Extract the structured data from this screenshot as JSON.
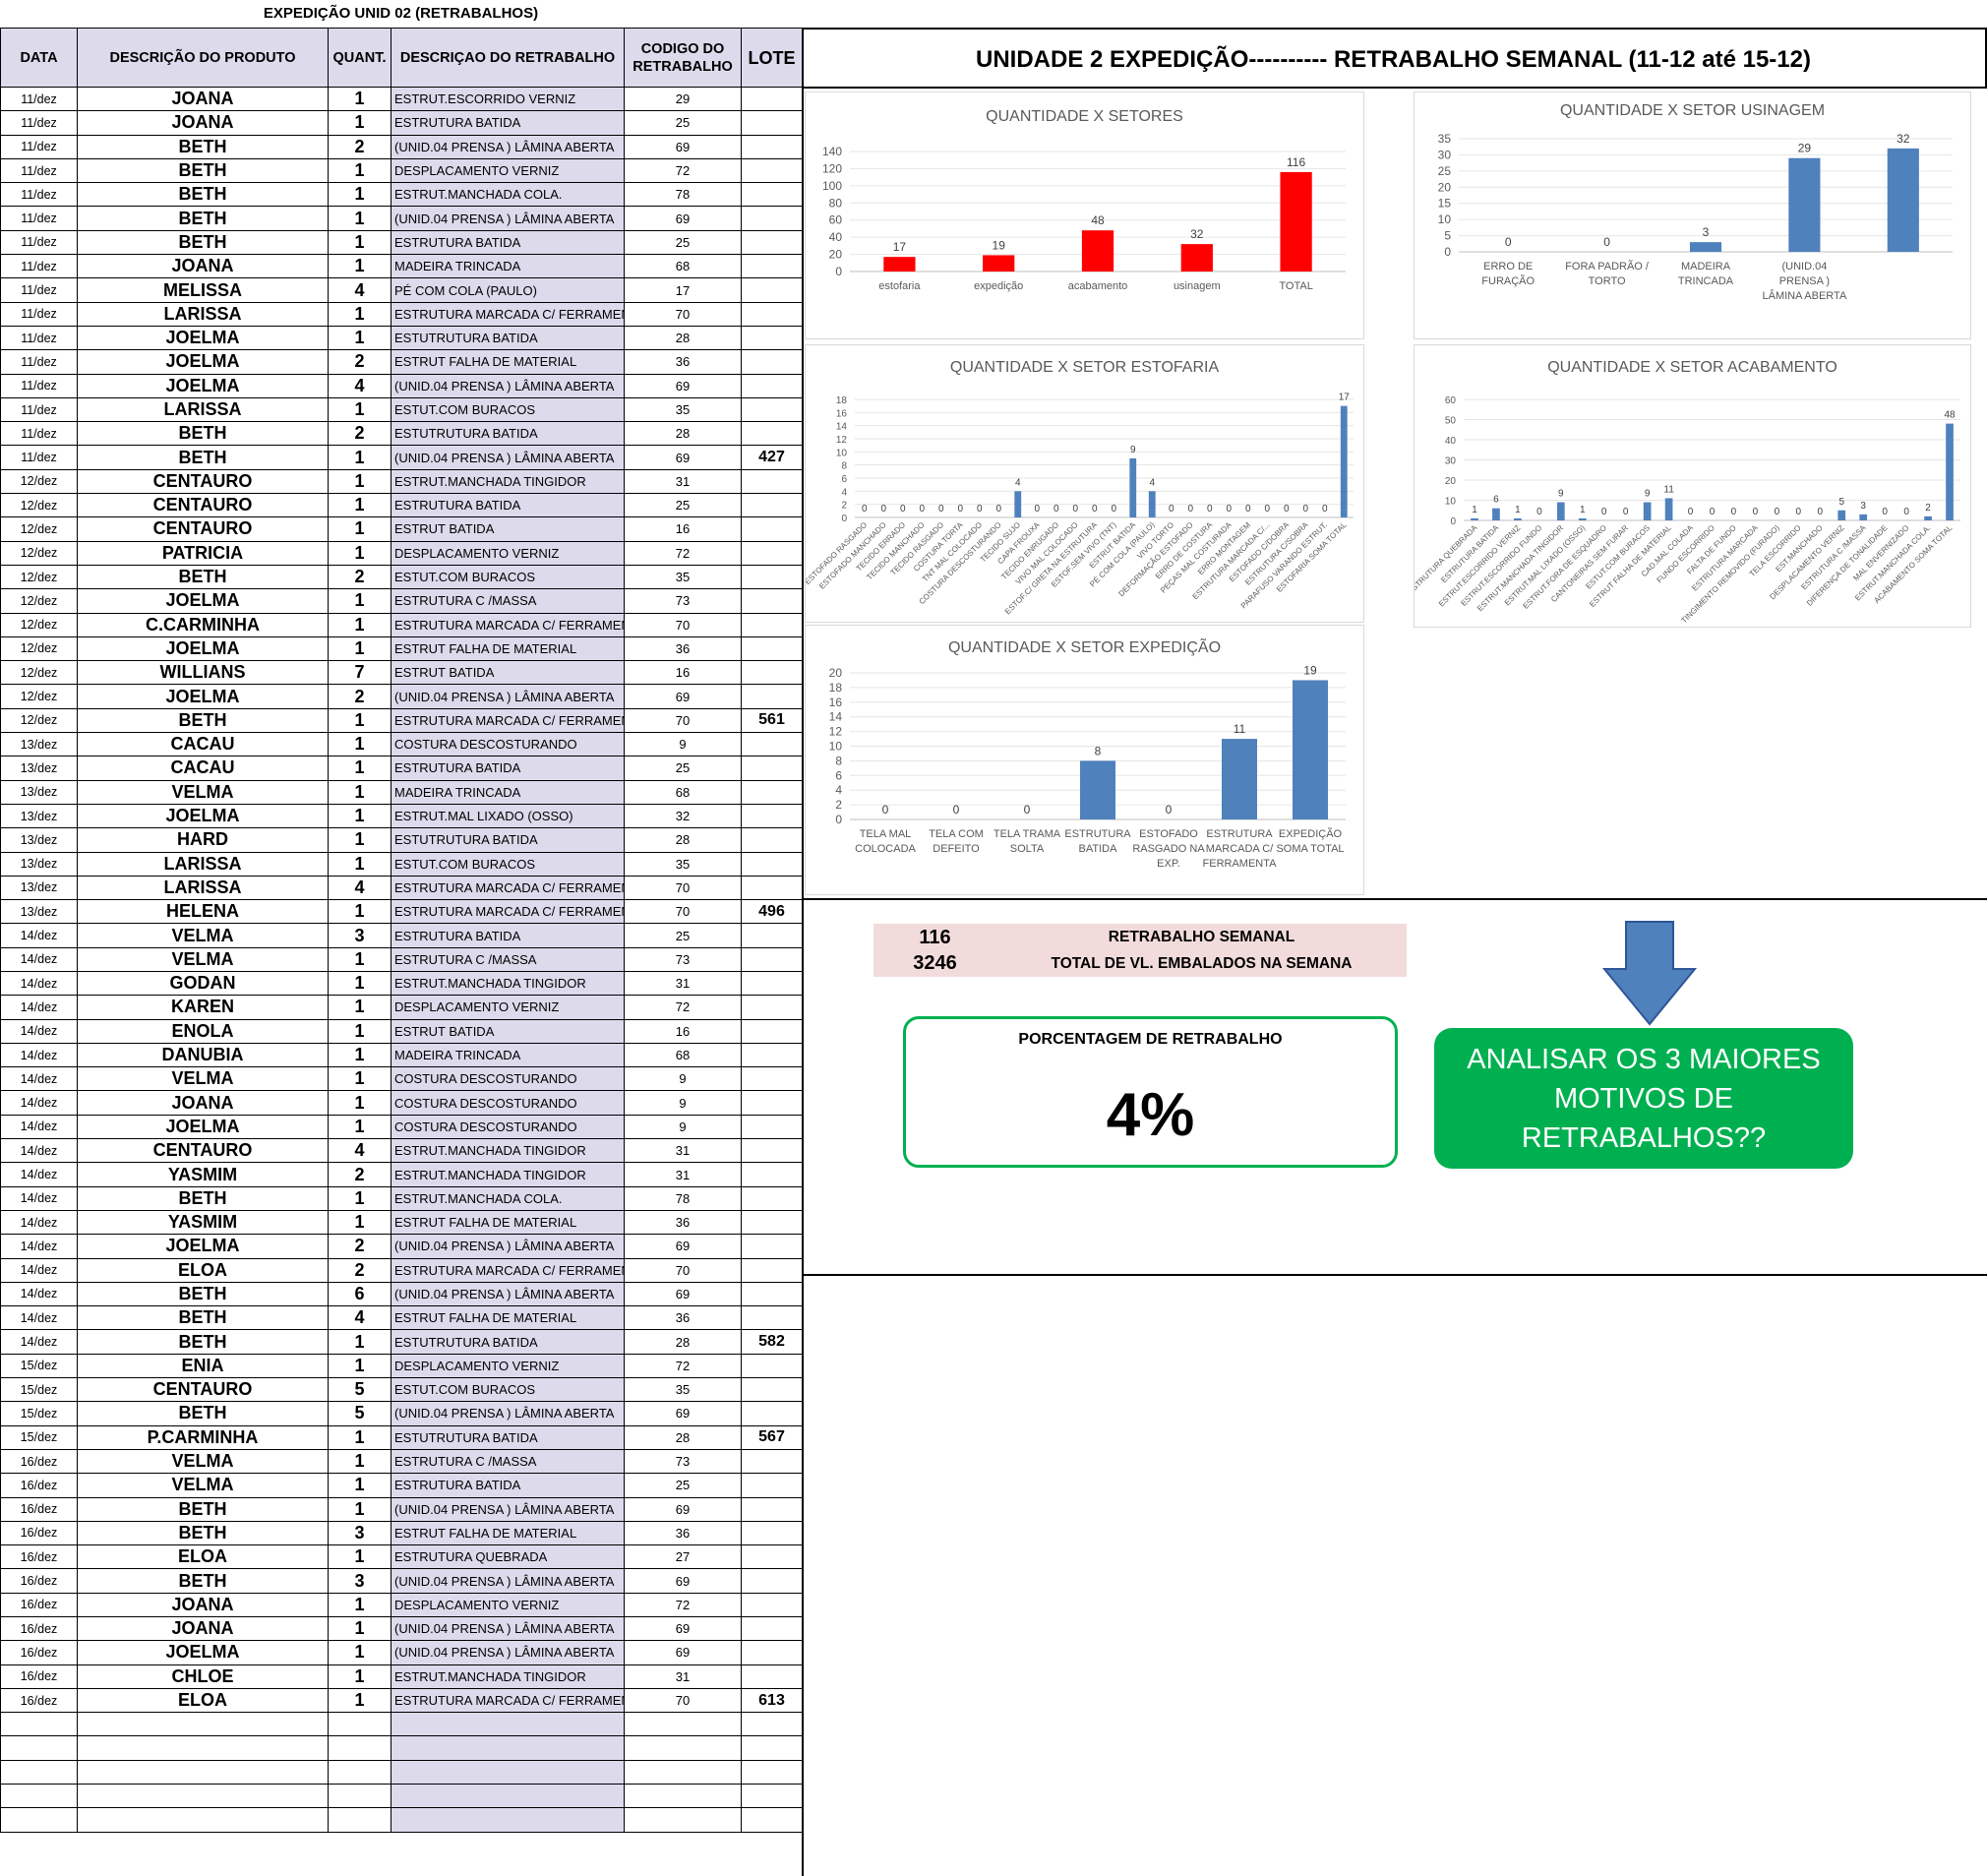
{
  "sheet_title": "EXPEDIÇÃO UNID 02 (RETRABALHOS)",
  "header": "UNIDADE 2 EXPEDIÇÃO----------   RETRABALHO SEMANAL (11-12 até 15-12)",
  "columns": [
    "DATA",
    "DESCRIÇÃO DO PRODUTO",
    "QUANT.",
    "DESCRIÇAO DO RETRABALHO",
    "CODIGO DO RETRABALHO",
    "LOTE"
  ],
  "rows": [
    [
      "11/dez",
      "JOANA",
      "1",
      "ESTRUT.ESCORRIDO VERNIZ",
      "29",
      ""
    ],
    [
      "11/dez",
      "JOANA",
      "1",
      "ESTRUTURA BATIDA",
      "25",
      ""
    ],
    [
      "11/dez",
      "BETH",
      "2",
      "(UNID.04 PRENSA ) LÂMINA ABERTA",
      "69",
      ""
    ],
    [
      "11/dez",
      "BETH",
      "1",
      "DESPLACAMENTO VERNIZ",
      "72",
      ""
    ],
    [
      "11/dez",
      "BETH",
      "1",
      "ESTRUT.MANCHADA COLA.",
      "78",
      ""
    ],
    [
      "11/dez",
      "BETH",
      "1",
      "(UNID.04 PRENSA ) LÂMINA ABERTA",
      "69",
      ""
    ],
    [
      "11/dez",
      "BETH",
      "1",
      "ESTRUTURA BATIDA",
      "25",
      ""
    ],
    [
      "11/dez",
      "JOANA",
      "1",
      "MADEIRA TRINCADA",
      "68",
      ""
    ],
    [
      "11/dez",
      "MELISSA",
      "4",
      "PÉ COM COLA (PAULO)",
      "17",
      ""
    ],
    [
      "11/dez",
      "LARISSA",
      "1",
      "ESTRUTURA MARCADA C/ FERRAMENTA",
      "70",
      ""
    ],
    [
      "11/dez",
      "JOELMA",
      "1",
      "ESTUTRUTURA BATIDA",
      "28",
      ""
    ],
    [
      "11/dez",
      "JOELMA",
      "2",
      "ESTRUT FALHA DE MATERIAL",
      "36",
      ""
    ],
    [
      "11/dez",
      "JOELMA",
      "4",
      "(UNID.04 PRENSA ) LÂMINA ABERTA",
      "69",
      ""
    ],
    [
      "11/dez",
      "LARISSA",
      "1",
      "ESTUT.COM BURACOS",
      "35",
      ""
    ],
    [
      "11/dez",
      "BETH",
      "2",
      "ESTUTRUTURA BATIDA",
      "28",
      ""
    ],
    [
      "11/dez",
      "BETH",
      "1",
      "(UNID.04 PRENSA ) LÂMINA ABERTA",
      "69",
      "427"
    ],
    [
      "12/dez",
      "CENTAURO",
      "1",
      "ESTRUT.MANCHADA TINGIDOR",
      "31",
      ""
    ],
    [
      "12/dez",
      "CENTAURO",
      "1",
      "ESTRUTURA BATIDA",
      "25",
      ""
    ],
    [
      "12/dez",
      "CENTAURO",
      "1",
      "ESTRUT BATIDA",
      "16",
      ""
    ],
    [
      "12/dez",
      "PATRICIA",
      "1",
      "DESPLACAMENTO VERNIZ",
      "72",
      ""
    ],
    [
      "12/dez",
      "BETH",
      "2",
      "ESTUT.COM BURACOS",
      "35",
      ""
    ],
    [
      "12/dez",
      "JOELMA",
      "1",
      "ESTRUTURA C /MASSA",
      "73",
      ""
    ],
    [
      "12/dez",
      "C.CARMINHA",
      "1",
      "ESTRUTURA MARCADA C/ FERRAMENTA",
      "70",
      ""
    ],
    [
      "12/dez",
      "JOELMA",
      "1",
      "ESTRUT FALHA DE MATERIAL",
      "36",
      ""
    ],
    [
      "12/dez",
      "WILLIANS",
      "7",
      "ESTRUT BATIDA",
      "16",
      ""
    ],
    [
      "12/dez",
      "JOELMA",
      "2",
      "(UNID.04 PRENSA ) LÂMINA ABERTA",
      "69",
      ""
    ],
    [
      "12/dez",
      "BETH",
      "1",
      "ESTRUTURA MARCADA C/ FERRAMENTA",
      "70",
      "561"
    ],
    [
      "13/dez",
      "CACAU",
      "1",
      "COSTURA DESCOSTURANDO",
      "9",
      ""
    ],
    [
      "13/dez",
      "CACAU",
      "1",
      "ESTRUTURA BATIDA",
      "25",
      ""
    ],
    [
      "13/dez",
      "VELMA",
      "1",
      "MADEIRA TRINCADA",
      "68",
      ""
    ],
    [
      "13/dez",
      "JOELMA",
      "1",
      "ESTRUT.MAL LIXADO (OSSO)",
      "32",
      ""
    ],
    [
      "13/dez",
      "HARD",
      "1",
      "ESTUTRUTURA BATIDA",
      "28",
      ""
    ],
    [
      "13/dez",
      "LARISSA",
      "1",
      "ESTUT.COM BURACOS",
      "35",
      ""
    ],
    [
      "13/dez",
      "LARISSA",
      "4",
      "ESTRUTURA MARCADA C/ FERRAMENTA",
      "70",
      ""
    ],
    [
      "13/dez",
      "HELENA",
      "1",
      "ESTRUTURA MARCADA C/ FERRAMENTA",
      "70",
      "496"
    ],
    [
      "14/dez",
      "VELMA",
      "3",
      "ESTRUTURA BATIDA",
      "25",
      ""
    ],
    [
      "14/dez",
      "VELMA",
      "1",
      "ESTRUTURA C /MASSA",
      "73",
      ""
    ],
    [
      "14/dez",
      "GODAN",
      "1",
      "ESTRUT.MANCHADA TINGIDOR",
      "31",
      ""
    ],
    [
      "14/dez",
      "KAREN",
      "1",
      "DESPLACAMENTO VERNIZ",
      "72",
      ""
    ],
    [
      "14/dez",
      "ENOLA",
      "1",
      "ESTRUT BATIDA",
      "16",
      ""
    ],
    [
      "14/dez",
      "DANUBIA",
      "1",
      "MADEIRA TRINCADA",
      "68",
      ""
    ],
    [
      "14/dez",
      "VELMA",
      "1",
      "COSTURA DESCOSTURANDO",
      "9",
      ""
    ],
    [
      "14/dez",
      "JOANA",
      "1",
      "COSTURA DESCOSTURANDO",
      "9",
      ""
    ],
    [
      "14/dez",
      "JOELMA",
      "1",
      "COSTURA DESCOSTURANDO",
      "9",
      ""
    ],
    [
      "14/dez",
      "CENTAURO",
      "4",
      "ESTRUT.MANCHADA TINGIDOR",
      "31",
      ""
    ],
    [
      "14/dez",
      "YASMIM",
      "2",
      "ESTRUT.MANCHADA TINGIDOR",
      "31",
      ""
    ],
    [
      "14/dez",
      "BETH",
      "1",
      "ESTRUT.MANCHADA COLA.",
      "78",
      ""
    ],
    [
      "14/dez",
      "YASMIM",
      "1",
      "ESTRUT FALHA DE MATERIAL",
      "36",
      ""
    ],
    [
      "14/dez",
      "JOELMA",
      "2",
      "(UNID.04 PRENSA ) LÂMINA ABERTA",
      "69",
      ""
    ],
    [
      "14/dez",
      "ELOA",
      "2",
      "ESTRUTURA MARCADA C/ FERRAMENTA",
      "70",
      ""
    ],
    [
      "14/dez",
      "BETH",
      "6",
      "(UNID.04 PRENSA ) LÂMINA ABERTA",
      "69",
      ""
    ],
    [
      "14/dez",
      "BETH",
      "4",
      "ESTRUT FALHA DE MATERIAL",
      "36",
      ""
    ],
    [
      "14/dez",
      "BETH",
      "1",
      "ESTUTRUTURA BATIDA",
      "28",
      "582"
    ],
    [
      "15/dez",
      "ENIA",
      "1",
      "DESPLACAMENTO VERNIZ",
      "72",
      ""
    ],
    [
      "15/dez",
      "CENTAURO",
      "5",
      "ESTUT.COM BURACOS",
      "35",
      ""
    ],
    [
      "15/dez",
      "BETH",
      "5",
      "(UNID.04 PRENSA ) LÂMINA ABERTA",
      "69",
      ""
    ],
    [
      "15/dez",
      "P.CARMINHA",
      "1",
      "ESTUTRUTURA BATIDA",
      "28",
      "567"
    ],
    [
      "16/dez",
      "VELMA",
      "1",
      "ESTRUTURA C /MASSA",
      "73",
      ""
    ],
    [
      "16/dez",
      "VELMA",
      "1",
      "ESTRUTURA BATIDA",
      "25",
      ""
    ],
    [
      "16/dez",
      "BETH",
      "1",
      "(UNID.04 PRENSA ) LÂMINA ABERTA",
      "69",
      ""
    ],
    [
      "16/dez",
      "BETH",
      "3",
      "ESTRUT FALHA DE MATERIAL",
      "36",
      ""
    ],
    [
      "16/dez",
      "ELOA",
      "1",
      "ESTRUTURA QUEBRADA",
      "27",
      ""
    ],
    [
      "16/dez",
      "BETH",
      "3",
      "(UNID.04 PRENSA ) LÂMINA ABERTA",
      "69",
      ""
    ],
    [
      "16/dez",
      "JOANA",
      "1",
      "DESPLACAMENTO VERNIZ",
      "72",
      ""
    ],
    [
      "16/dez",
      "JOANA",
      "1",
      "(UNID.04 PRENSA ) LÂMINA ABERTA",
      "69",
      ""
    ],
    [
      "16/dez",
      "JOELMA",
      "1",
      "(UNID.04 PRENSA ) LÂMINA ABERTA",
      "69",
      ""
    ],
    [
      "16/dez",
      "CHLOE",
      "1",
      "ESTRUT.MANCHADA TINGIDOR",
      "31",
      ""
    ],
    [
      "16/dez",
      "ELOA",
      "1",
      "ESTRUTURA MARCADA C/ FERRAMENTA",
      "70",
      "613"
    ]
  ],
  "empty_rows": 5,
  "summary": {
    "weekly_value": "116",
    "weekly_label": "RETRABALHO SEMANAL",
    "packed_value": "3246",
    "packed_label": "TOTAL DE VL. EMBALADOS NA SEMANA",
    "pct_label": "PORCENTAGEM DE RETRABALHO",
    "pct_value": "4%",
    "cta_lines": [
      "ANALISAR OS 3 MAIORES",
      "MOTIVOS DE",
      "RETRABALHOS??"
    ]
  },
  "colors": {
    "red": "#ff0000",
    "blue": "#4f81bd",
    "green": "#00b050",
    "lavender": "#dcdaeb",
    "pink": "#f2dcdb"
  },
  "chart_data": [
    {
      "id": "setores",
      "type": "bar",
      "title": "QUANTIDADE X SETORES",
      "color": "#ff0000",
      "categories": [
        "estofaria",
        "expedição",
        "acabamento",
        "usinagem",
        "TOTAL"
      ],
      "values": [
        17,
        19,
        48,
        32,
        116
      ],
      "ylim": [
        0,
        140
      ],
      "ystep": 20,
      "label_rotate": false
    },
    {
      "id": "usinagem",
      "type": "bar",
      "title": "QUANTIDADE X SETOR USINAGEM",
      "color": "#4f81bd",
      "categories": [
        "ERRO DE FURAÇÃO",
        "FORA PADRÃO / TORTO",
        "MADEIRA TRINCADA",
        "(UNID.04 PRENSA ) LÂMINA ABERTA",
        ""
      ],
      "values": [
        0,
        0,
        3,
        29,
        32
      ],
      "ylim": [
        0,
        35
      ],
      "ystep": 5,
      "label_rotate": false
    },
    {
      "id": "estofaria",
      "type": "bar",
      "title": "QUANTIDADE X SETOR ESTOFARIA",
      "color": "#4f81bd",
      "categories": [
        "ESTOFADO RASGADO",
        "ESTOFADO MANCHADO",
        "TECIDO ERRADO",
        "TECIDO MANCHADO",
        "TECIDO RASGADO",
        "COSTURA TORTA",
        "TNT MAL COLOCADO",
        "COSTURA DESCOSTURANDO",
        "TECIDO SUJO",
        "CAPA FROUXA",
        "TECIDO ENRUGADO",
        "VIVO MAL COLOCADO",
        "ESTOF.C/ GRETA NA ESTRUTURA",
        "ESTOF.SEM VIVO (TNT)",
        "ESTRUT BATIDA",
        "PÉ COM COLA (PAULO)",
        "VIVO TORTO",
        "DEFORMAÇÃO ESTOFADO",
        "ERRO DE COSTURA",
        "PEÇAS MAL COSTURADA",
        "ERRO MONTAGEM",
        "ESTRUTURA MARCADA C/...",
        "ESTOFADO C/DOBRA",
        "ESTRUTURA C/SOBRA",
        "PARAFUSO VARANDO ESTRUT.",
        "ESTOFARIA SOMA TOTAL"
      ],
      "values": [
        0,
        0,
        0,
        0,
        0,
        0,
        0,
        0,
        4,
        0,
        0,
        0,
        0,
        0,
        9,
        4,
        0,
        0,
        0,
        0,
        0,
        0,
        0,
        0,
        0,
        17
      ],
      "ylim": [
        0,
        18
      ],
      "ystep": 2,
      "label_rotate": true
    },
    {
      "id": "acabamento",
      "type": "bar",
      "title": "QUANTIDADE X SETOR ACABAMENTO",
      "color": "#4f81bd",
      "categories": [
        "ESTRUTURA QUEBRADA",
        "ESTRUTURA BATIDA",
        "ESTRUT.ESCORRIDO VERNIZ",
        "ESTRUT.ESCORRIDO FUNDO",
        "ESTRUT.MANCHADA TINGIDOR",
        "ESTRUT.MAL LIXADO (OSSO)",
        "ESTRUT.FORA DE ESQUADRO",
        "CANTONEIRAS SEM FURAR",
        "ESTUT.COM BURACOS",
        "ESTRUT FALHA DE MATERIAL",
        "CAD.MAL COLADA",
        "FUNDO ESCORRIDO",
        "FALTA DE FUNDO",
        "ESTRUTURA MARCADA",
        "TINGIMENTO REMOVIDO (FURADO)",
        "TELA ESCORRIDO",
        "EST.MANCHADO",
        "DESPLACAMENTO VERNIZ",
        "ESTRUTURA C /MASSA",
        "DIFERENÇA DE TONALIDADE",
        "MAL ENVERNIZADO",
        "ESTRUT.MANCHADA COLA.",
        "ACABAMENTO SOMA TOTAL"
      ],
      "values": [
        1,
        6,
        1,
        0,
        9,
        1,
        0,
        0,
        9,
        11,
        0,
        0,
        0,
        0,
        0,
        0,
        0,
        5,
        3,
        0,
        0,
        2,
        48
      ],
      "ylim": [
        0,
        60
      ],
      "ystep": 10,
      "label_rotate": true
    },
    {
      "id": "expedicao",
      "type": "bar",
      "title": "QUANTIDADE X SETOR EXPEDIÇÃO",
      "color": "#4f81bd",
      "categories": [
        "TELA MAL COLOCADA",
        "TELA COM DEFEITO",
        "TELA TRAMA SOLTA",
        "ESTRUTURA BATIDA",
        "ESTOFADO RASGADO NA EXP.",
        "ESTRUTURA MARCADA C/ FERRAMENTA",
        "EXPEDIÇÃO SOMA TOTAL"
      ],
      "values": [
        0,
        0,
        0,
        8,
        0,
        11,
        19
      ],
      "ylim": [
        0,
        20
      ],
      "ystep": 2,
      "label_rotate": false
    }
  ]
}
